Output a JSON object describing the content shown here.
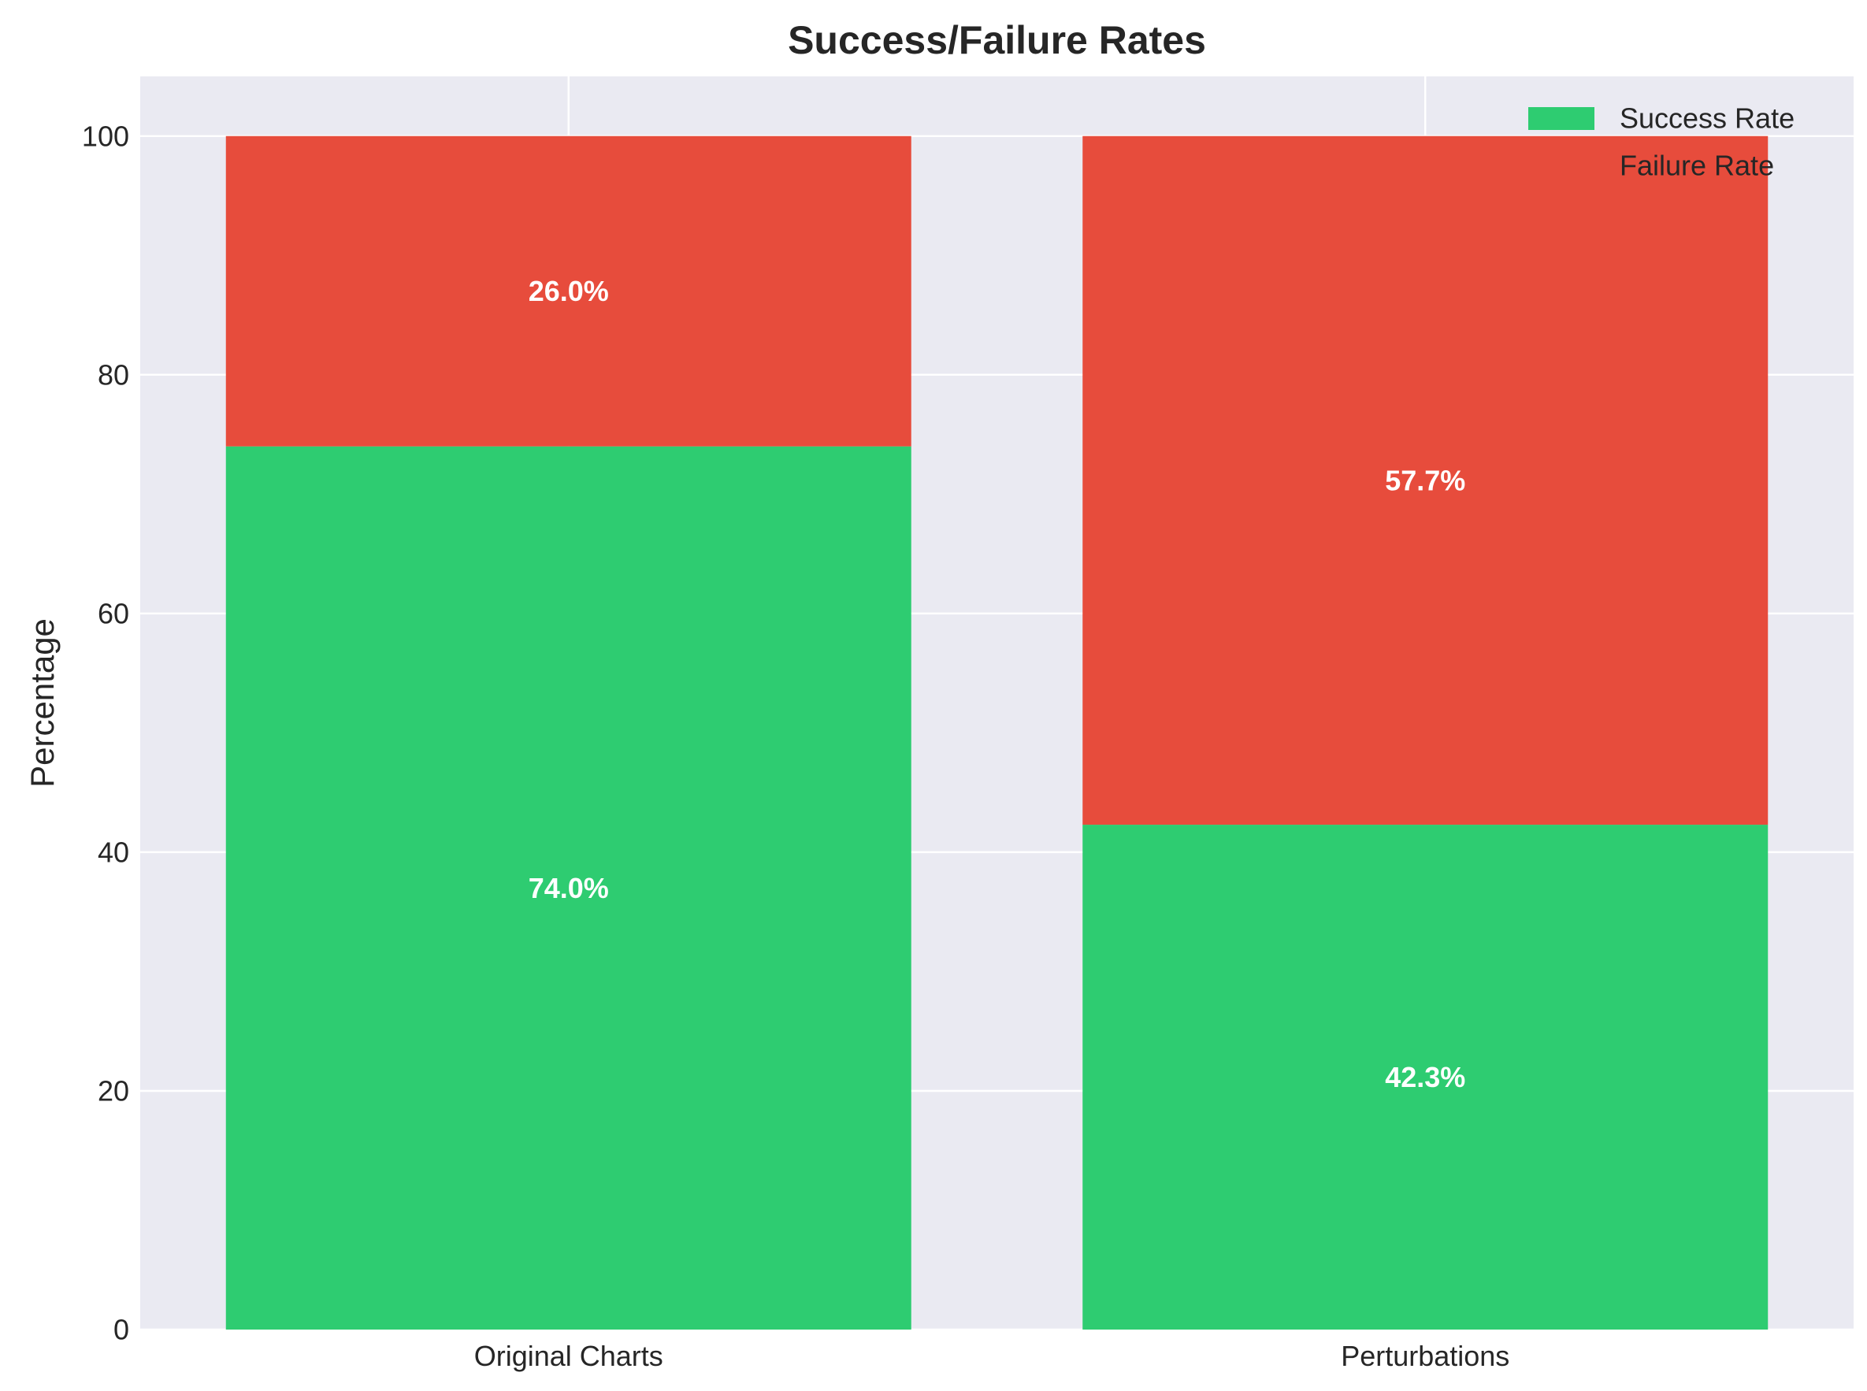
{
  "chart_data": {
    "type": "bar",
    "stacked": true,
    "title": "Success/Failure Rates",
    "xlabel": "",
    "ylabel": "Percentage",
    "categories": [
      "Original Charts",
      "Perturbations"
    ],
    "series": [
      {
        "name": "Success Rate",
        "values": [
          74.0,
          42.3
        ],
        "labels": [
          "74.0%",
          "42.3%"
        ],
        "color": "#2ecc71"
      },
      {
        "name": "Failure Rate",
        "values": [
          26.0,
          57.7
        ],
        "labels": [
          "26.0%",
          "57.7%"
        ],
        "color": "#e74c3c"
      }
    ],
    "ylim": [
      0,
      105
    ],
    "yticks": [
      0,
      20,
      40,
      60,
      80,
      100
    ],
    "grid": true,
    "legend_position": "top-right",
    "colors": {
      "background": "#eaeaf2",
      "grid": "#ffffff"
    }
  }
}
